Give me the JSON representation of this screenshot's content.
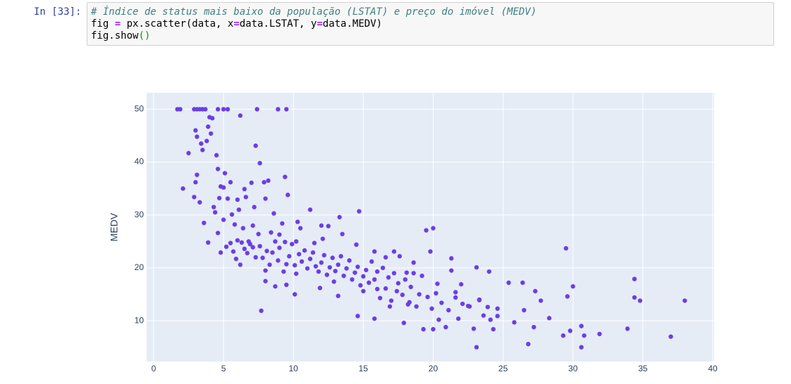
{
  "cell": {
    "prompt": "In [33]:",
    "code": [
      [
        "# Índice de status mais baixo da população (LSTAT) e preço do imóvel (MEDV)"
      ],
      [
        "fig ",
        "=",
        " px.scatter(data, x",
        "=",
        "data.LSTAT, y",
        "=",
        "data.MEDV)"
      ],
      [
        "fig.show",
        "()"
      ]
    ]
  },
  "chart_data": {
    "type": "scatter",
    "y_label": "MEDV",
    "color": "#6b3fe6",
    "grid": true,
    "xlim": [
      -0.5,
      40.1
    ],
    "ylim": [
      2.3,
      53.1
    ],
    "xticks": [
      0,
      5,
      10,
      15,
      20,
      25,
      30,
      35,
      40
    ],
    "yticks": [
      10,
      20,
      30,
      40,
      50
    ],
    "x": [
      1.7,
      1.9,
      2.9,
      3.1,
      3.3,
      3.5,
      3.7,
      4.6,
      5.0,
      5.3,
      7.4,
      8.9,
      9.5,
      6.2,
      2.1,
      2.9,
      3.0,
      3.1,
      3.3,
      3.5,
      3.0,
      3.1,
      3.4,
      3.8,
      3.9,
      4.0,
      4.2,
      4.1,
      4.5,
      2.5,
      4.6,
      4.8,
      5.0,
      5.1,
      5.5,
      4.7,
      4.3,
      5.3,
      6.0,
      6.5,
      6.6,
      7.0,
      7.3,
      7.6,
      7.9,
      8.0,
      8.2,
      9.4,
      9.6,
      7.2,
      6.1,
      5.6,
      4.4,
      3.6,
      3.9,
      8.6,
      9.2,
      10.3,
      10.5,
      11.2,
      12.5,
      13.3,
      14.7,
      12,
      19.5,
      20,
      29.5,
      4.8,
      5.2,
      5.5,
      5.7,
      5.9,
      6.2,
      6.3,
      6.5,
      6.7,
      6.9,
      7.1,
      7.3,
      7.5,
      7.6,
      7.8,
      8.0,
      8.1,
      8.3,
      8.5,
      8.7,
      8.9,
      9.0,
      9.3,
      9.4,
      9.5,
      9.7,
      9.9,
      10.1,
      10.2,
      10.4,
      10.6,
      10.8,
      11.0,
      11.2,
      11.4,
      11.6,
      11.8,
      12.0,
      12.2,
      12.4,
      12.6,
      12.8,
      13.0,
      13.2,
      13.4,
      13.6,
      13.8,
      14.0,
      14.2,
      14.4,
      14.6,
      14.8,
      15.0,
      15.2,
      15.4,
      15.6,
      15.8,
      16.0,
      16.2,
      16.4,
      16.6,
      16.8,
      17.0,
      17.2,
      17.4,
      17.6,
      17.8,
      18.0,
      18.2,
      18.4,
      18.6,
      18.8,
      19.0,
      19.3,
      19.6,
      19.9,
      20.2,
      20.4,
      20.6,
      20.9,
      21.1,
      21.3,
      21.6,
      21.8,
      22.1,
      22.6,
      22.9,
      23.1,
      23.3,
      23.6,
      23.9,
      24.1,
      24.3,
      24.6,
      25.4,
      25.8,
      26.4,
      26.5,
      26.8,
      27.2,
      27.3,
      27.7,
      28.3,
      29.3,
      29.6,
      29.8,
      30.0,
      30.6,
      30.6,
      30.8,
      31.9,
      33.9,
      34.4,
      34.4,
      34.8,
      37.0,
      38.0,
      21.3,
      20.0,
      23.1,
      24.0,
      18.1,
      14.6,
      15.8,
      17.9,
      16.9,
      7.7,
      8.7,
      10.1,
      11.9,
      13.2,
      22.0,
      22.5,
      6.0,
      6.8,
      5.8,
      6.4,
      7.1,
      8.4,
      9.0,
      10.2,
      11.5,
      12.1,
      13.5,
      14.5,
      15.8,
      16.6,
      17.2,
      18.6,
      19.8,
      5.0,
      4.6,
      8.0,
      9.5,
      12.9,
      15.0,
      16.0,
      17.5,
      18.3,
      19.2,
      20.3,
      21.6,
      23.3,
      24.6
    ],
    "y": [
      50,
      50,
      50,
      50,
      50,
      50,
      50,
      50,
      50,
      50,
      50,
      50,
      50,
      48.8,
      35,
      33.4,
      36.2,
      37.6,
      32.4,
      42.3,
      46,
      44.8,
      43.5,
      44,
      46.7,
      48.5,
      48.3,
      45.4,
      41.3,
      41.7,
      38.7,
      35.4,
      35.2,
      37.9,
      36.2,
      33.2,
      31.5,
      33.1,
      32.9,
      34.9,
      33.4,
      36.1,
      43.1,
      39.8,
      36.2,
      33.1,
      36.5,
      37.2,
      33.8,
      31.5,
      31.0,
      30.1,
      30.5,
      28.5,
      24.8,
      30.3,
      28.4,
      28.7,
      27.5,
      31,
      27.9,
      29.6,
      30.7,
      28,
      27.1,
      27.5,
      23.7,
      22.9,
      24.0,
      24.7,
      23.1,
      21.7,
      20.6,
      24.8,
      23.6,
      22.8,
      24.5,
      23.9,
      22.0,
      26.4,
      24.1,
      21.9,
      19.5,
      23.2,
      20.6,
      22.9,
      25.0,
      21.4,
      23.8,
      19.3,
      24.9,
      20.7,
      22.2,
      24.5,
      20.5,
      18.9,
      22.6,
      21.2,
      23.3,
      19.9,
      21.7,
      22.9,
      20.3,
      19.3,
      21.0,
      22.4,
      18.7,
      20.1,
      21.9,
      19.4,
      20.6,
      22.2,
      18.5,
      19.9,
      21.4,
      17.8,
      19.1,
      20.2,
      16.7,
      18.4,
      19.6,
      17.2,
      21.2,
      17.8,
      19.3,
      14.3,
      20.0,
      16.1,
      18.2,
      13.8,
      19.0,
      15.6,
      22.2,
      14.9,
      17.8,
      13.1,
      16.4,
      19.0,
      12.7,
      15.0,
      8.4,
      14.5,
      12.3,
      15.2,
      10.2,
      13.4,
      8.8,
      12.0,
      19.5,
      14.4,
      10.4,
      13.2,
      12.7,
      8.5,
      5.0,
      13.9,
      11.0,
      12.6,
      10.2,
      8.4,
      12.3,
      17.2,
      9.7,
      17.2,
      12.0,
      5.6,
      8.8,
      15.6,
      13.8,
      10.5,
      7.2,
      14.6,
      8.1,
      16.5,
      9.0,
      5.0,
      7.2,
      7.5,
      8.5,
      17.9,
      14.4,
      13.8,
      7.0,
      13.8,
      21.8,
      8.4,
      20.1,
      19.3,
      19.1,
      10.9,
      10.4,
      9.6,
      12.7,
      11.9,
      16.5,
      15.0,
      16.2,
      14.7,
      16.9,
      12.8,
      25.2,
      25.0,
      28.2,
      27.5,
      28.0,
      26.7,
      26.3,
      25.0,
      24.7,
      25.5,
      26.4,
      24.4,
      23.1,
      22.0,
      23.1,
      21.0,
      23.1,
      29.1,
      26.6,
      17.5,
      16.8,
      17.4,
      15.6,
      16.0,
      17.1,
      13.5,
      18.5,
      17.0,
      15.4,
      14.0,
      10.9
    ]
  }
}
